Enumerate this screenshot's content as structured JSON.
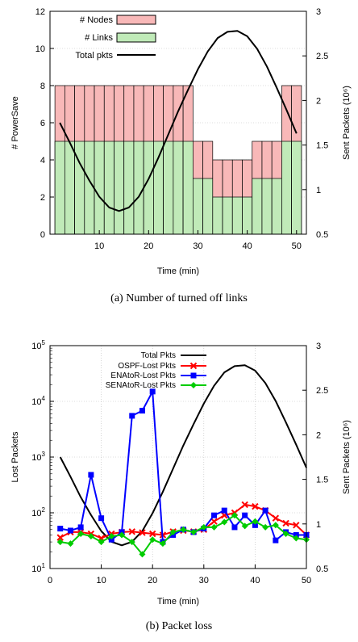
{
  "captions": {
    "a": "(a) Number of turned off links",
    "b": "(b) Packet loss"
  },
  "chart_data": [
    {
      "type": "bar",
      "xlabel": "Time (min)",
      "ylabel": "# PowerSave",
      "y2label": "Sent Packets (10⁶)",
      "xlim": [
        0,
        52
      ],
      "ylim": [
        0,
        12
      ],
      "y2lim": [
        0.5,
        3
      ],
      "xticks": [
        10,
        20,
        30,
        40,
        50
      ],
      "yticks": [
        0,
        2,
        4,
        6,
        8,
        10,
        12
      ],
      "y2ticks": [
        "0.5",
        "1",
        "1.5",
        "2",
        "2.5",
        "3"
      ],
      "y2tickvals": [
        0.5,
        1,
        1.5,
        2,
        2.5,
        3
      ],
      "legend_position": "top-left",
      "colors": {
        "nodes": "#f8b8b8",
        "links": "#c0eab8",
        "line": "#000000"
      },
      "bar_x": [
        2,
        4,
        6,
        8,
        10,
        12,
        14,
        16,
        18,
        20,
        22,
        24,
        26,
        28,
        30,
        32,
        34,
        36,
        38,
        40,
        42,
        44,
        46,
        48,
        50
      ],
      "series": [
        {
          "name": "# Nodes",
          "values": [
            8,
            8,
            8,
            8,
            8,
            8,
            8,
            8,
            8,
            8,
            8,
            8,
            8,
            8,
            5,
            5,
            4,
            4,
            4,
            4,
            5,
            5,
            5,
            8,
            8
          ]
        },
        {
          "name": "# Links",
          "values": [
            5,
            5,
            5,
            5,
            5,
            5,
            5,
            5,
            5,
            5,
            5,
            5,
            5,
            5,
            3,
            3,
            2,
            2,
            2,
            2,
            3,
            3,
            3,
            5,
            5
          ]
        },
        {
          "name": "Total pkts",
          "axis": "right",
          "x": [
            2,
            4,
            6,
            8,
            10,
            12,
            14,
            16,
            18,
            20,
            22,
            24,
            26,
            28,
            30,
            32,
            34,
            36,
            38,
            40,
            42,
            44,
            46,
            48,
            50
          ],
          "values": [
            1.75,
            1.53,
            1.3,
            1.1,
            0.92,
            0.8,
            0.76,
            0.8,
            0.92,
            1.12,
            1.36,
            1.62,
            1.88,
            2.12,
            2.35,
            2.55,
            2.7,
            2.77,
            2.78,
            2.72,
            2.58,
            2.38,
            2.14,
            1.89,
            1.63
          ]
        }
      ]
    },
    {
      "type": "line",
      "xlabel": "Time (min)",
      "ylabel": "Lost Packets",
      "y2label": "Sent Packets (10⁶)",
      "xlim": [
        0,
        50
      ],
      "ylim": [
        10,
        100000
      ],
      "yscale": "log",
      "y2lim": [
        0.5,
        3
      ],
      "xticks": [
        0,
        10,
        20,
        30,
        40,
        50
      ],
      "yticks": [
        {
          "base": "10",
          "exp": "1",
          "value": 10
        },
        {
          "base": "10",
          "exp": "2",
          "value": 100
        },
        {
          "base": "10",
          "exp": "3",
          "value": 1000
        },
        {
          "base": "10",
          "exp": "4",
          "value": 10000
        },
        {
          "base": "10",
          "exp": "5",
          "value": 100000
        }
      ],
      "y2ticks": [
        "0.5",
        "1",
        "1.5",
        "2",
        "2.5",
        "3"
      ],
      "y2tickvals": [
        0.5,
        1,
        1.5,
        2,
        2.5,
        3
      ],
      "legend_position": "top-left",
      "x": [
        2,
        4,
        6,
        8,
        10,
        12,
        14,
        16,
        18,
        20,
        22,
        24,
        26,
        28,
        30,
        32,
        34,
        36,
        38,
        40,
        42,
        44,
        46,
        48,
        50
      ],
      "series": [
        {
          "name": "Total Pkts",
          "axis": "right",
          "color": "#000000",
          "marker": "none",
          "values": [
            1.75,
            1.53,
            1.3,
            1.1,
            0.92,
            0.8,
            0.76,
            0.8,
            0.92,
            1.12,
            1.36,
            1.62,
            1.88,
            2.12,
            2.35,
            2.55,
            2.7,
            2.77,
            2.78,
            2.72,
            2.58,
            2.38,
            2.14,
            1.89,
            1.63
          ]
        },
        {
          "name": "OSPF-Lost Pkts",
          "color": "#ff0000",
          "marker": "x",
          "values": [
            36,
            45,
            45,
            42,
            35,
            42,
            45,
            46,
            44,
            42,
            40,
            46,
            48,
            46,
            50,
            70,
            90,
            100,
            140,
            130,
            110,
            80,
            65,
            60,
            40
          ]
        },
        {
          "name": "ENAtoR-Lost Pkts",
          "color": "#0000ff",
          "marker": "square",
          "values": [
            52,
            48,
            55,
            480,
            80,
            33,
            45,
            5500,
            6800,
            15000,
            30,
            40,
            50,
            45,
            52,
            90,
            110,
            55,
            90,
            60,
            110,
            32,
            45,
            40,
            40
          ]
        },
        {
          "name": "SENAtoR-Lost Pkts",
          "color": "#00cc00",
          "marker": "diamond",
          "values": [
            30,
            28,
            42,
            38,
            30,
            38,
            40,
            30,
            18,
            33,
            28,
            45,
            50,
            45,
            55,
            55,
            68,
            90,
            58,
            70,
            55,
            60,
            42,
            35,
            33
          ]
        }
      ]
    }
  ]
}
